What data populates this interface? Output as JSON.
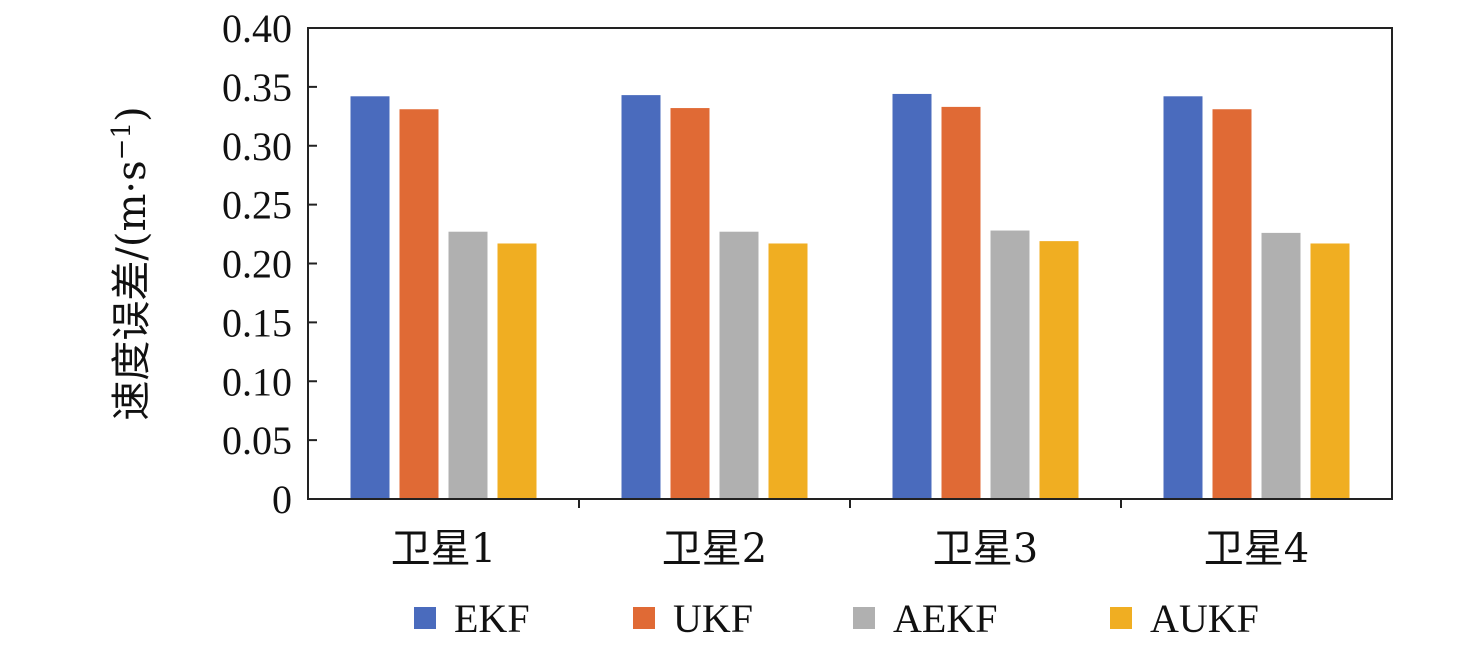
{
  "chart_data": {
    "type": "bar",
    "title": "",
    "xlabel": "",
    "ylabel": {
      "prefix": "速度误差/(m·s",
      "exponent": "−1",
      "suffix": ")"
    },
    "ylim": [
      0,
      0.4
    ],
    "yticks": [
      "0",
      "0.05",
      "0.10",
      "0.15",
      "0.20",
      "0.25",
      "0.30",
      "0.35",
      "0.40"
    ],
    "categories": [
      "卫星1",
      "卫星2",
      "卫星3",
      "卫星4"
    ],
    "series": [
      {
        "name": "EKF",
        "color": "#4a6bbd",
        "values": [
          0.342,
          0.343,
          0.344,
          0.342
        ]
      },
      {
        "name": "UKF",
        "color": "#e06a35",
        "values": [
          0.331,
          0.332,
          0.333,
          0.331
        ]
      },
      {
        "name": "AEKF",
        "color": "#b0b0b0",
        "values": [
          0.227,
          0.227,
          0.228,
          0.226
        ]
      },
      {
        "name": "AUKF",
        "color": "#f0ae22",
        "values": [
          0.217,
          0.217,
          0.219,
          0.217
        ]
      }
    ],
    "grid": false,
    "legend_position": "bottom"
  }
}
